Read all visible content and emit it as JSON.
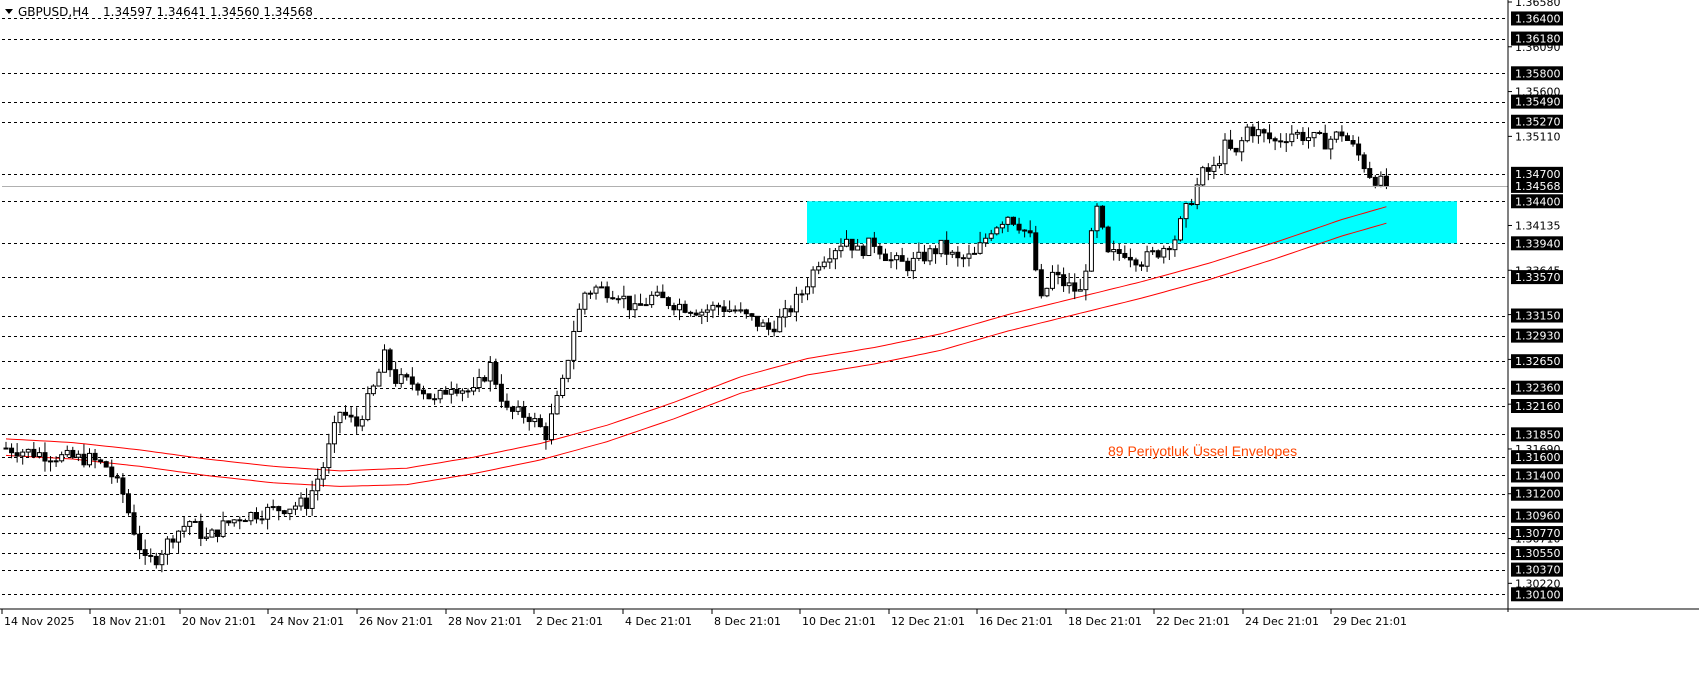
{
  "header": {
    "symbol_timeframe": "GBPUSD,H4",
    "ohlc": "1.34597 1.34641 1.34560 1.34568"
  },
  "annotation": "89  Periyotluk Üssel Envelopes",
  "colors": {
    "background": "#ffffff",
    "zone": "#00ffff",
    "envelope": "#ff0000",
    "candle": "#000000",
    "price_label_bg": "#000000",
    "price_label_text": "#ffffff",
    "annotation": "#ff4500"
  },
  "chart_data": {
    "type": "candlestick",
    "symbol": "GBPUSD",
    "timeframe": "H4",
    "ylim": [
      1.2995,
      1.3658
    ],
    "price_ticks": [
      "1.36580",
      "1.36090",
      "1.35600",
      "1.35110",
      "1.34135",
      "1.33645",
      "1.33160",
      "1.32670",
      "1.32180",
      "1.31690",
      "1.31200",
      "1.30710",
      "1.30220"
    ],
    "level_lines": [
      "1.36400",
      "1.36180",
      "1.35800",
      "1.35490",
      "1.35270",
      "1.34700",
      "1.34400",
      "1.33940",
      "1.33570",
      "1.33150",
      "1.32930",
      "1.32650",
      "1.32360",
      "1.32160",
      "1.31850",
      "1.31600",
      "1.31400",
      "1.31200",
      "1.30960",
      "1.30770",
      "1.30550",
      "1.30370",
      "1.30100"
    ],
    "current_price": "1.34568",
    "time_labels": [
      "14 Nov 2025",
      "18 Nov 21:01",
      "20 Nov 21:01",
      "24 Nov 21:01",
      "26 Nov 21:01",
      "28 Nov 21:01",
      "2 Dec 21:01",
      "4 Dec 21:01",
      "8 Dec 21:01",
      "10 Dec 21:01",
      "12 Dec 21:01",
      "16 Dec 21:01",
      "18 Dec 21:01",
      "22 Dec 21:01",
      "24 Dec 21:01",
      "29 Dec 21:01"
    ],
    "zone": {
      "from_label": "10 Dec 21:01",
      "price_top": 1.344,
      "price_bottom": 1.3394
    },
    "envelope_upper": [
      [
        0,
        1.318
      ],
      [
        12,
        1.3176
      ],
      [
        24,
        1.3168
      ],
      [
        36,
        1.3158
      ],
      [
        48,
        1.315
      ],
      [
        60,
        1.3145
      ],
      [
        72,
        1.3148
      ],
      [
        84,
        1.316
      ],
      [
        96,
        1.3175
      ],
      [
        108,
        1.3195
      ],
      [
        120,
        1.322
      ],
      [
        132,
        1.3248
      ],
      [
        144,
        1.3268
      ],
      [
        156,
        1.328
      ],
      [
        168,
        1.3295
      ],
      [
        180,
        1.3316
      ],
      [
        192,
        1.3334
      ],
      [
        204,
        1.3352
      ],
      [
        216,
        1.3372
      ],
      [
        228,
        1.3395
      ],
      [
        240,
        1.342
      ],
      [
        248,
        1.3434
      ]
    ],
    "envelope_lower": [
      [
        0,
        1.3162
      ],
      [
        12,
        1.3158
      ],
      [
        24,
        1.315
      ],
      [
        36,
        1.314
      ],
      [
        48,
        1.3132
      ],
      [
        60,
        1.3128
      ],
      [
        72,
        1.313
      ],
      [
        84,
        1.3142
      ],
      [
        96,
        1.3157
      ],
      [
        108,
        1.3177
      ],
      [
        120,
        1.3202
      ],
      [
        132,
        1.323
      ],
      [
        144,
        1.325
      ],
      [
        156,
        1.3262
      ],
      [
        168,
        1.3277
      ],
      [
        180,
        1.3298
      ],
      [
        192,
        1.3316
      ],
      [
        204,
        1.3334
      ],
      [
        216,
        1.3354
      ],
      [
        228,
        1.3377
      ],
      [
        240,
        1.3402
      ],
      [
        248,
        1.3416
      ]
    ],
    "price_path": [
      [
        0,
        1.317
      ],
      [
        5,
        1.3165
      ],
      [
        10,
        1.316
      ],
      [
        15,
        1.3158
      ],
      [
        18,
        1.315
      ],
      [
        21,
        1.312
      ],
      [
        23,
        1.308
      ],
      [
        25,
        1.3045
      ],
      [
        27,
        1.305
      ],
      [
        30,
        1.3075
      ],
      [
        33,
        1.309
      ],
      [
        36,
        1.307
      ],
      [
        39,
        1.3085
      ],
      [
        42,
        1.3095
      ],
      [
        46,
        1.31
      ],
      [
        50,
        1.3105
      ],
      [
        54,
        1.311
      ],
      [
        57,
        1.315
      ],
      [
        60,
        1.321
      ],
      [
        63,
        1.3195
      ],
      [
        66,
        1.3235
      ],
      [
        68,
        1.327
      ],
      [
        70,
        1.3245
      ],
      [
        74,
        1.324
      ],
      [
        77,
        1.322
      ],
      [
        80,
        1.324
      ],
      [
        84,
        1.323
      ],
      [
        87,
        1.326
      ],
      [
        90,
        1.321
      ],
      [
        94,
        1.3205
      ],
      [
        97,
        1.3185
      ],
      [
        100,
        1.324
      ],
      [
        102,
        1.33
      ],
      [
        104,
        1.334
      ],
      [
        106,
        1.3345
      ],
      [
        110,
        1.334
      ],
      [
        113,
        1.332
      ],
      [
        116,
        1.3335
      ],
      [
        119,
        1.333
      ],
      [
        122,
        1.3325
      ],
      [
        125,
        1.332
      ],
      [
        128,
        1.3325
      ],
      [
        131,
        1.332
      ],
      [
        134,
        1.331
      ],
      [
        137,
        1.33
      ],
      [
        140,
        1.3315
      ],
      [
        143,
        1.334
      ],
      [
        146,
        1.3375
      ],
      [
        149,
        1.339
      ],
      [
        151,
        1.34
      ],
      [
        153,
        1.3385
      ],
      [
        156,
        1.3395
      ],
      [
        159,
        1.3375
      ],
      [
        162,
        1.337
      ],
      [
        165,
        1.338
      ],
      [
        168,
        1.339
      ],
      [
        171,
        1.3375
      ],
      [
        174,
        1.338
      ],
      [
        177,
        1.341
      ],
      [
        180,
        1.3425
      ],
      [
        182,
        1.3415
      ],
      [
        184,
        1.34
      ],
      [
        186,
        1.333
      ],
      [
        188,
        1.336
      ],
      [
        190,
        1.335
      ],
      [
        193,
        1.334
      ],
      [
        196,
        1.343
      ],
      [
        198,
        1.338
      ],
      [
        201,
        1.3385
      ],
      [
        204,
        1.3375
      ],
      [
        207,
        1.3385
      ],
      [
        210,
        1.34
      ],
      [
        212,
        1.343
      ],
      [
        215,
        1.347
      ],
      [
        217,
        1.3475
      ],
      [
        219,
        1.35
      ],
      [
        221,
        1.349
      ],
      [
        223,
        1.352
      ],
      [
        225,
        1.3515
      ],
      [
        228,
        1.3505
      ],
      [
        231,
        1.3515
      ],
      [
        234,
        1.351
      ],
      [
        237,
        1.3505
      ],
      [
        240,
        1.3515
      ],
      [
        243,
        1.349
      ],
      [
        245,
        1.347
      ],
      [
        247,
        1.346
      ],
      [
        248,
        1.3457
      ]
    ]
  }
}
